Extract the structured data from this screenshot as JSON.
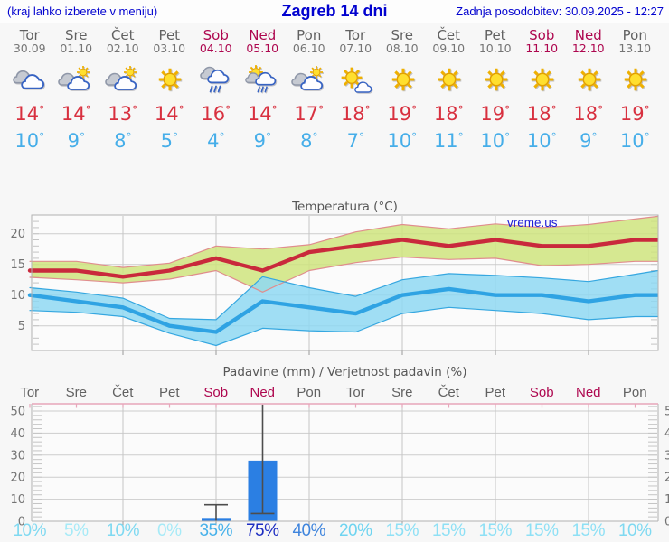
{
  "header": {
    "left": "(kraj lahko izberete v meniju)",
    "title": "Zagreb 14 dni",
    "right": "Zadnja posodobitev: 30.09.2025 - 12:27"
  },
  "units": {
    "degree": "°"
  },
  "watermark": "vreme.us",
  "colors": {
    "weekend": "#ae074f",
    "high_temp": "#d8303f",
    "low_temp": "#46aee9",
    "header_blue": "#0202cf"
  },
  "forecast": {
    "days": [
      {
        "name": "Tor",
        "date": "30.09",
        "weekend": false,
        "icon": "cloudy",
        "high": 14,
        "low": 10,
        "prob": "10%",
        "prob_color": "#7fd9f1"
      },
      {
        "name": "Sre",
        "date": "01.10",
        "weekend": false,
        "icon": "partly-cloudy",
        "high": 14,
        "low": 9,
        "prob": "5%",
        "prob_color": "#a6eaf7"
      },
      {
        "name": "Čet",
        "date": "02.10",
        "weekend": false,
        "icon": "partly-cloudy",
        "high": 13,
        "low": 8,
        "prob": "10%",
        "prob_color": "#7fd9f1"
      },
      {
        "name": "Pet",
        "date": "03.10",
        "weekend": false,
        "icon": "sunny",
        "high": 14,
        "low": 5,
        "prob": "0%",
        "prob_color": "#a6eaf7"
      },
      {
        "name": "Sob",
        "date": "04.10",
        "weekend": true,
        "icon": "rain",
        "high": 16,
        "low": 4,
        "prob": "35%",
        "prob_color": "#49b2ea"
      },
      {
        "name": "Ned",
        "date": "05.10",
        "weekend": true,
        "icon": "sun-rain",
        "high": 14,
        "low": 9,
        "prob": "75%",
        "prob_color": "#1e2ec2"
      },
      {
        "name": "Pon",
        "date": "06.10",
        "weekend": false,
        "icon": "partly-cloudy",
        "high": 17,
        "low": 8,
        "prob": "40%",
        "prob_color": "#3f85dd"
      },
      {
        "name": "Tor",
        "date": "07.10",
        "weekend": false,
        "icon": "mostly-sunny",
        "high": 18,
        "low": 7,
        "prob": "20%",
        "prob_color": "#6fd4f0"
      },
      {
        "name": "Sre",
        "date": "08.10",
        "weekend": false,
        "icon": "sunny",
        "high": 19,
        "low": 10,
        "prob": "15%",
        "prob_color": "#8ee0f5"
      },
      {
        "name": "Čet",
        "date": "09.10",
        "weekend": false,
        "icon": "sunny",
        "high": 18,
        "low": 11,
        "prob": "15%",
        "prob_color": "#8ee0f5"
      },
      {
        "name": "Pet",
        "date": "10.10",
        "weekend": false,
        "icon": "sunny",
        "high": 19,
        "low": 10,
        "prob": "15%",
        "prob_color": "#8ee0f5"
      },
      {
        "name": "Sob",
        "date": "11.10",
        "weekend": true,
        "icon": "sunny",
        "high": 18,
        "low": 10,
        "prob": "15%",
        "prob_color": "#8ee0f5"
      },
      {
        "name": "Ned",
        "date": "12.10",
        "weekend": true,
        "icon": "sunny",
        "high": 18,
        "low": 9,
        "prob": "15%",
        "prob_color": "#8ee0f5"
      },
      {
        "name": "Pon",
        "date": "13.10",
        "weekend": false,
        "icon": "sunny",
        "high": 19,
        "low": 10,
        "prob": "10%",
        "prob_color": "#7fd9f1"
      }
    ]
  },
  "chart_data": [
    {
      "type": "line",
      "title": "Temperatura (°C)",
      "ylim": [
        1.0,
        23.0
      ],
      "yticks": [
        5,
        10,
        15,
        20
      ],
      "grid_day_indices": [
        2,
        4,
        6,
        8,
        10,
        12
      ],
      "x_categories": [
        "Tor 30.09",
        "Sre 01.10",
        "Čet 02.10",
        "Pet 03.10",
        "Sob 04.10",
        "Ned 05.10",
        "Pon 06.10",
        "Tor 07.10",
        "Sre 08.10",
        "Čet 09.10",
        "Pet 10.10",
        "Sob 11.10",
        "Ned 12.10",
        "Pon 13.10"
      ],
      "series": [
        {
          "name": "t-max",
          "color": "#c9293c",
          "values": [
            14,
            14,
            13,
            14,
            16,
            14,
            17,
            18,
            19,
            18,
            19,
            18,
            18,
            19
          ]
        },
        {
          "name": "t-min",
          "color": "#2fa3e3",
          "values": [
            10,
            9,
            8,
            5,
            4,
            9,
            8,
            7,
            10,
            11,
            10,
            10,
            9,
            10
          ]
        }
      ],
      "bands": [
        {
          "name": "t-max-range",
          "fill": "#cfe47e",
          "edge": "#e08d8d",
          "upper": [
            15.5,
            15.5,
            14.5,
            15.2,
            18.0,
            17.5,
            18.2,
            20.3,
            21.5,
            20.8,
            21.6,
            21.0,
            21.5,
            22.4
          ],
          "lower": [
            12.9,
            12.5,
            12.0,
            12.6,
            14.0,
            10.5,
            14.0,
            15.3,
            16.2,
            15.8,
            16.0,
            14.8,
            15.0,
            15.5
          ]
        },
        {
          "name": "t-min-range",
          "fill": "#8fd8f2",
          "edge": "#35a7e0",
          "upper": [
            11.2,
            10.5,
            9.5,
            6.2,
            6.0,
            13.0,
            11.2,
            9.8,
            12.5,
            13.5,
            13.2,
            12.8,
            12.2,
            13.4
          ],
          "lower": [
            7.5,
            7.2,
            6.5,
            3.8,
            1.8,
            4.6,
            4.2,
            4.0,
            7.0,
            8.0,
            7.5,
            7.0,
            6.0,
            6.5
          ]
        }
      ],
      "watermark": "vreme.us"
    },
    {
      "type": "bar",
      "title": "Padavine (mm) / Verjetnost padavin (%)",
      "ylim": [
        0,
        53.3
      ],
      "yticks": [
        0,
        10,
        20,
        30,
        40,
        50
      ],
      "grid_day_indices": [
        2,
        4,
        6,
        8,
        10,
        12
      ],
      "bar_color": "#2b7fe3",
      "whisker_color": "#4d4d4d",
      "top_border_color": "#e7a6ba",
      "values": [
        0,
        0,
        0,
        0,
        1.5,
        27.5,
        0,
        0,
        0,
        0,
        0,
        0,
        0,
        0
      ],
      "whiskers": [
        {
          "index": 4,
          "from": 0,
          "to": 7.5,
          "cap": 7.5
        },
        {
          "index": 5,
          "from": 3.5,
          "to": 53.5,
          "cap": 3.5
        }
      ],
      "probabilities": [
        "10%",
        "5%",
        "10%",
        "0%",
        "35%",
        "75%",
        "40%",
        "20%",
        "15%",
        "15%",
        "15%",
        "15%",
        "15%",
        "10%"
      ]
    }
  ]
}
